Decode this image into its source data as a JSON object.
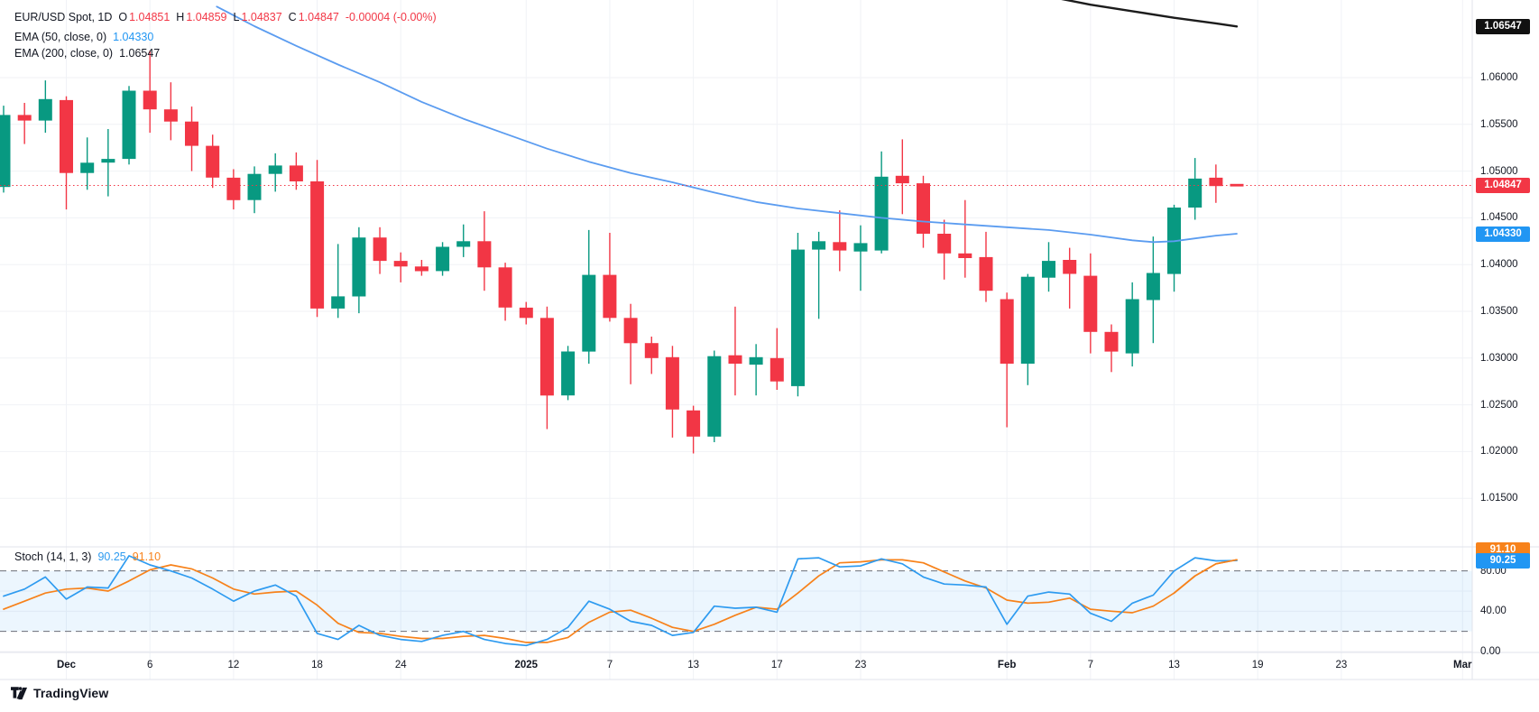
{
  "legend": {
    "symbol_title": "EUR/USD Spot, 1D",
    "o_label": "O",
    "o_value": "1.04851",
    "h_label": "H",
    "h_value": "1.04859",
    "l_label": "L",
    "l_value": "1.04837",
    "c_label": "C",
    "c_value": "1.04847",
    "change": "-0.00004 (-0.00%)",
    "ema50_label": "EMA (50, close, 0)",
    "ema50_value": "1.04330",
    "ema200_label": "EMA (200, close, 0)",
    "ema200_value": "1.06547",
    "stoch_label": "Stoch (14, 1, 3)",
    "stoch_k_value": "90.25",
    "stoch_d_value": "91.10"
  },
  "footer": {
    "brand": "TradingView"
  },
  "colors": {
    "up": "#089981",
    "down": "#F23645",
    "ema50": "#5B9CF0",
    "ema200": "#1c1c1c",
    "last_line": "#F23645",
    "stoch_k": "#2E9BF0",
    "stoch_d": "#F7821B",
    "band_fill": "#2E9BF0",
    "band_dash": "#6A6E78",
    "grid": "#F0F2F6",
    "border": "#E0E3EB",
    "badge_last": "#F23645",
    "badge_ema50": "#2196F3",
    "badge_ema200": "#111111",
    "badge_stoch_k": "#2196F3",
    "badge_stoch_d": "#F7821B",
    "axis_text": "#131722"
  },
  "chart_data": {
    "type": "candlestick",
    "symbol": "EUR/USD Spot",
    "interval": "1D",
    "last_price": 1.04847,
    "bars": [
      {
        "d": "Nov 27",
        "o": 1.0483,
        "h": 1.057,
        "l": 1.0477,
        "c": 1.056
      },
      {
        "d": "Nov 28",
        "o": 1.056,
        "h": 1.0573,
        "l": 1.0529,
        "c": 1.0554
      },
      {
        "d": "Nov 29",
        "o": 1.0554,
        "h": 1.0597,
        "l": 1.0541,
        "c": 1.0577
      },
      {
        "d": "Dec 2",
        "o": 1.0576,
        "h": 1.058,
        "l": 1.0459,
        "c": 1.0498
      },
      {
        "d": "Dec 3",
        "o": 1.0498,
        "h": 1.0536,
        "l": 1.048,
        "c": 1.0509
      },
      {
        "d": "Dec 4",
        "o": 1.0509,
        "h": 1.0545,
        "l": 1.0473,
        "c": 1.0513
      },
      {
        "d": "Dec 5",
        "o": 1.0513,
        "h": 1.0591,
        "l": 1.0507,
        "c": 1.0586
      },
      {
        "d": "Dec 6",
        "o": 1.0586,
        "h": 1.0629,
        "l": 1.0541,
        "c": 1.0566
      },
      {
        "d": "Dec 9",
        "o": 1.0566,
        "h": 1.0595,
        "l": 1.0533,
        "c": 1.0553
      },
      {
        "d": "Dec 10",
        "o": 1.0553,
        "h": 1.0569,
        "l": 1.05,
        "c": 1.0527
      },
      {
        "d": "Dec 11",
        "o": 1.0527,
        "h": 1.0539,
        "l": 1.0482,
        "c": 1.0493
      },
      {
        "d": "Dec 12",
        "o": 1.0493,
        "h": 1.0502,
        "l": 1.0459,
        "c": 1.0469
      },
      {
        "d": "Dec 13",
        "o": 1.0469,
        "h": 1.0505,
        "l": 1.0455,
        "c": 1.0497
      },
      {
        "d": "Dec 16",
        "o": 1.0497,
        "h": 1.0519,
        "l": 1.0478,
        "c": 1.0506
      },
      {
        "d": "Dec 17",
        "o": 1.0506,
        "h": 1.052,
        "l": 1.048,
        "c": 1.0489
      },
      {
        "d": "Dec 18",
        "o": 1.0489,
        "h": 1.0512,
        "l": 1.0344,
        "c": 1.0353
      },
      {
        "d": "Dec 19",
        "o": 1.0353,
        "h": 1.0422,
        "l": 1.0343,
        "c": 1.0366
      },
      {
        "d": "Dec 20",
        "o": 1.0366,
        "h": 1.044,
        "l": 1.0348,
        "c": 1.0429
      },
      {
        "d": "Dec 23",
        "o": 1.0429,
        "h": 1.044,
        "l": 1.039,
        "c": 1.0404
      },
      {
        "d": "Dec 24",
        "o": 1.0404,
        "h": 1.0413,
        "l": 1.0381,
        "c": 1.0398
      },
      {
        "d": "Dec 25",
        "o": 1.0398,
        "h": 1.0405,
        "l": 1.0388,
        "c": 1.0393
      },
      {
        "d": "Dec 26",
        "o": 1.0393,
        "h": 1.0424,
        "l": 1.0388,
        "c": 1.0419
      },
      {
        "d": "Dec 27",
        "o": 1.0419,
        "h": 1.0443,
        "l": 1.0408,
        "c": 1.0425
      },
      {
        "d": "Dec 30",
        "o": 1.0425,
        "h": 1.0457,
        "l": 1.0372,
        "c": 1.0397
      },
      {
        "d": "Dec 31",
        "o": 1.0397,
        "h": 1.0402,
        "l": 1.034,
        "c": 1.0354
      },
      {
        "d": "Jan 1",
        "o": 1.0354,
        "h": 1.036,
        "l": 1.0336,
        "c": 1.0343
      },
      {
        "d": "Jan 2",
        "o": 1.0343,
        "h": 1.0355,
        "l": 1.0224,
        "c": 1.026
      },
      {
        "d": "Jan 3",
        "o": 1.026,
        "h": 1.0313,
        "l": 1.0255,
        "c": 1.0307
      },
      {
        "d": "Jan 6",
        "o": 1.0307,
        "h": 1.0437,
        "l": 1.0294,
        "c": 1.0389
      },
      {
        "d": "Jan 7",
        "o": 1.0389,
        "h": 1.0434,
        "l": 1.0339,
        "c": 1.0343
      },
      {
        "d": "Jan 8",
        "o": 1.0343,
        "h": 1.0358,
        "l": 1.0272,
        "c": 1.0316
      },
      {
        "d": "Jan 9",
        "o": 1.0316,
        "h": 1.0323,
        "l": 1.0283,
        "c": 1.03
      },
      {
        "d": "Jan 10",
        "o": 1.0301,
        "h": 1.0313,
        "l": 1.0215,
        "c": 1.0245
      },
      {
        "d": "Jan 13",
        "o": 1.0244,
        "h": 1.0249,
        "l": 1.0198,
        "c": 1.0216
      },
      {
        "d": "Jan 14",
        "o": 1.0216,
        "h": 1.0308,
        "l": 1.021,
        "c": 1.0302
      },
      {
        "d": "Jan 15",
        "o": 1.0303,
        "h": 1.0355,
        "l": 1.026,
        "c": 1.0294
      },
      {
        "d": "Jan 16",
        "o": 1.0293,
        "h": 1.0315,
        "l": 1.026,
        "c": 1.0301
      },
      {
        "d": "Jan 17",
        "o": 1.03,
        "h": 1.0332,
        "l": 1.0266,
        "c": 1.0275
      },
      {
        "d": "Jan 20",
        "o": 1.027,
        "h": 1.0434,
        "l": 1.0259,
        "c": 1.0416
      },
      {
        "d": "Jan 21",
        "o": 1.0416,
        "h": 1.0435,
        "l": 1.0342,
        "c": 1.0425
      },
      {
        "d": "Jan 22",
        "o": 1.0424,
        "h": 1.0458,
        "l": 1.0393,
        "c": 1.0415
      },
      {
        "d": "Jan 23",
        "o": 1.0414,
        "h": 1.0442,
        "l": 1.0372,
        "c": 1.0423
      },
      {
        "d": "Jan 24",
        "o": 1.0415,
        "h": 1.0521,
        "l": 1.0412,
        "c": 1.0494
      },
      {
        "d": "Jan 27",
        "o": 1.0495,
        "h": 1.0534,
        "l": 1.0454,
        "c": 1.0487
      },
      {
        "d": "Jan 28",
        "o": 1.0487,
        "h": 1.0495,
        "l": 1.0418,
        "c": 1.0433
      },
      {
        "d": "Jan 29",
        "o": 1.0433,
        "h": 1.0448,
        "l": 1.0384,
        "c": 1.0412
      },
      {
        "d": "Jan 30",
        "o": 1.0412,
        "h": 1.0469,
        "l": 1.0386,
        "c": 1.0407
      },
      {
        "d": "Jan 31",
        "o": 1.0408,
        "h": 1.0435,
        "l": 1.036,
        "c": 1.0372
      },
      {
        "d": "Feb 3",
        "o": 1.0363,
        "h": 1.037,
        "l": 1.0226,
        "c": 1.0294
      },
      {
        "d": "Feb 4",
        "o": 1.0294,
        "h": 1.039,
        "l": 1.0271,
        "c": 1.0387
      },
      {
        "d": "Feb 5",
        "o": 1.0386,
        "h": 1.0424,
        "l": 1.0371,
        "c": 1.0404
      },
      {
        "d": "Feb 6",
        "o": 1.0405,
        "h": 1.0418,
        "l": 1.0353,
        "c": 1.039
      },
      {
        "d": "Feb 7",
        "o": 1.0388,
        "h": 1.0412,
        "l": 1.0305,
        "c": 1.0328
      },
      {
        "d": "Feb 10",
        "o": 1.0328,
        "h": 1.0336,
        "l": 1.0285,
        "c": 1.0307
      },
      {
        "d": "Feb 11",
        "o": 1.0305,
        "h": 1.0381,
        "l": 1.0291,
        "c": 1.0363
      },
      {
        "d": "Feb 12",
        "o": 1.0362,
        "h": 1.043,
        "l": 1.0316,
        "c": 1.0391
      },
      {
        "d": "Feb 13",
        "o": 1.039,
        "h": 1.0464,
        "l": 1.0371,
        "c": 1.0461
      },
      {
        "d": "Feb 14",
        "o": 1.0461,
        "h": 1.0514,
        "l": 1.0448,
        "c": 1.0492
      },
      {
        "d": "Feb 17",
        "o": 1.0493,
        "h": 1.0507,
        "l": 1.0466,
        "c": 1.0484
      },
      {
        "d": "Feb 18",
        "o": 1.04851,
        "h": 1.04859,
        "l": 1.04837,
        "c": 1.04847
      }
    ],
    "overlays": [
      {
        "name": "EMA 50",
        "points": [
          [
            10.2,
            1.0676
          ],
          [
            12,
            1.0655
          ],
          [
            14,
            1.0634
          ],
          [
            16,
            1.0614
          ],
          [
            18,
            1.0595
          ],
          [
            20,
            1.0574
          ],
          [
            22,
            1.0556
          ],
          [
            24,
            1.054
          ],
          [
            26,
            1.0524
          ],
          [
            28,
            1.051
          ],
          [
            30,
            1.0498
          ],
          [
            32,
            1.0488
          ],
          [
            34,
            1.0477
          ],
          [
            36,
            1.0467
          ],
          [
            38,
            1.046
          ],
          [
            40,
            1.0455
          ],
          [
            42,
            1.045
          ],
          [
            44,
            1.0446
          ],
          [
            46,
            1.0443
          ],
          [
            48,
            1.044
          ],
          [
            50,
            1.0437
          ],
          [
            52,
            1.0432
          ],
          [
            54,
            1.0426
          ],
          [
            55,
            1.0424
          ],
          [
            56,
            1.0425
          ],
          [
            57,
            1.0428
          ],
          [
            58,
            1.0431
          ],
          [
            59,
            1.0433
          ]
        ]
      },
      {
        "name": "EMA 200",
        "points": [
          [
            50.4,
            1.0685
          ],
          [
            52,
            1.0678
          ],
          [
            54,
            1.0671
          ],
          [
            56,
            1.0664
          ],
          [
            58,
            1.0658
          ],
          [
            59,
            1.06547
          ]
        ]
      }
    ],
    "price_axis": {
      "ticks": [
        {
          "v": 1.06,
          "label": "1.06000"
        },
        {
          "v": 1.055,
          "label": "1.05500"
        },
        {
          "v": 1.05,
          "label": "1.05000"
        },
        {
          "v": 1.045,
          "label": "1.04500"
        },
        {
          "v": 1.04,
          "label": "1.04000"
        },
        {
          "v": 1.035,
          "label": "1.03500"
        },
        {
          "v": 1.03,
          "label": "1.03000"
        },
        {
          "v": 1.025,
          "label": "1.02500"
        },
        {
          "v": 1.02,
          "label": "1.02000"
        },
        {
          "v": 1.015,
          "label": "1.01500"
        }
      ],
      "badges": [
        {
          "name": "ema200-badge",
          "label": "1.06547",
          "v": 1.06547,
          "color_key": "badge_ema200"
        },
        {
          "name": "last-price-badge",
          "label": "1.04847",
          "v": 1.04847,
          "color_key": "badge_last"
        },
        {
          "name": "ema50-badge",
          "label": "1.04330",
          "v": 1.0433,
          "color_key": "badge_ema50"
        }
      ]
    },
    "time_axis": {
      "ticks": [
        {
          "bar": 3,
          "label": "Dec",
          "strong": true
        },
        {
          "bar": 7,
          "label": "6"
        },
        {
          "bar": 11,
          "label": "12"
        },
        {
          "bar": 15,
          "label": "18"
        },
        {
          "bar": 19,
          "label": "24"
        },
        {
          "bar": 25,
          "label": "2025",
          "strong": true
        },
        {
          "bar": 29,
          "label": "7"
        },
        {
          "bar": 33,
          "label": "13"
        },
        {
          "bar": 37,
          "label": "17"
        },
        {
          "bar": 41,
          "label": "23"
        },
        {
          "bar": 48,
          "label": "Feb",
          "strong": true
        },
        {
          "bar": 52,
          "label": "7"
        },
        {
          "bar": 56,
          "label": "13"
        },
        {
          "bar": 60,
          "label": "19"
        },
        {
          "bar": 64,
          "label": "23"
        },
        {
          "bar": 69.8,
          "label": "Mar",
          "strong": true
        }
      ]
    },
    "indicator": {
      "name": "Stoch (14, 1, 3)",
      "upper_band": 80,
      "lower_band": 20,
      "k": [
        55,
        62,
        74,
        52,
        64,
        63,
        95,
        86,
        80,
        73,
        62,
        50,
        60,
        66,
        55,
        18,
        12,
        26,
        16,
        12,
        10,
        16,
        20,
        12,
        8,
        6,
        12,
        24,
        50,
        42,
        30,
        26,
        16,
        19,
        45,
        43,
        44,
        39,
        92,
        93,
        84,
        85,
        92,
        87,
        74,
        67,
        66,
        64,
        27,
        55,
        59,
        57,
        38,
        30,
        48,
        56,
        80,
        93,
        90,
        90.25
      ],
      "d": [
        42,
        50,
        58,
        62,
        63,
        60,
        70,
        81,
        86,
        82,
        73,
        62,
        57,
        59,
        60,
        46,
        28,
        19,
        18,
        15,
        13,
        13,
        15,
        16,
        13,
        9,
        9,
        14,
        29,
        39,
        41,
        33,
        24,
        20,
        27,
        36,
        44,
        42,
        58,
        75,
        88,
        89,
        91,
        91,
        88,
        79,
        70,
        63,
        51,
        48,
        49,
        53,
        42,
        40,
        38.5,
        45,
        58,
        75,
        87,
        91.1
      ],
      "axis_ticks": [
        {
          "v": 80,
          "label": "80.00"
        },
        {
          "v": 40,
          "label": "40.00"
        },
        {
          "v": 0,
          "label": "0.00"
        }
      ],
      "badges": [
        {
          "name": "stoch-d-badge",
          "label": "91.10",
          "color_key": "badge_stoch_d"
        },
        {
          "name": "stoch-k-badge",
          "label": "90.25",
          "color_key": "badge_stoch_k"
        }
      ]
    }
  }
}
